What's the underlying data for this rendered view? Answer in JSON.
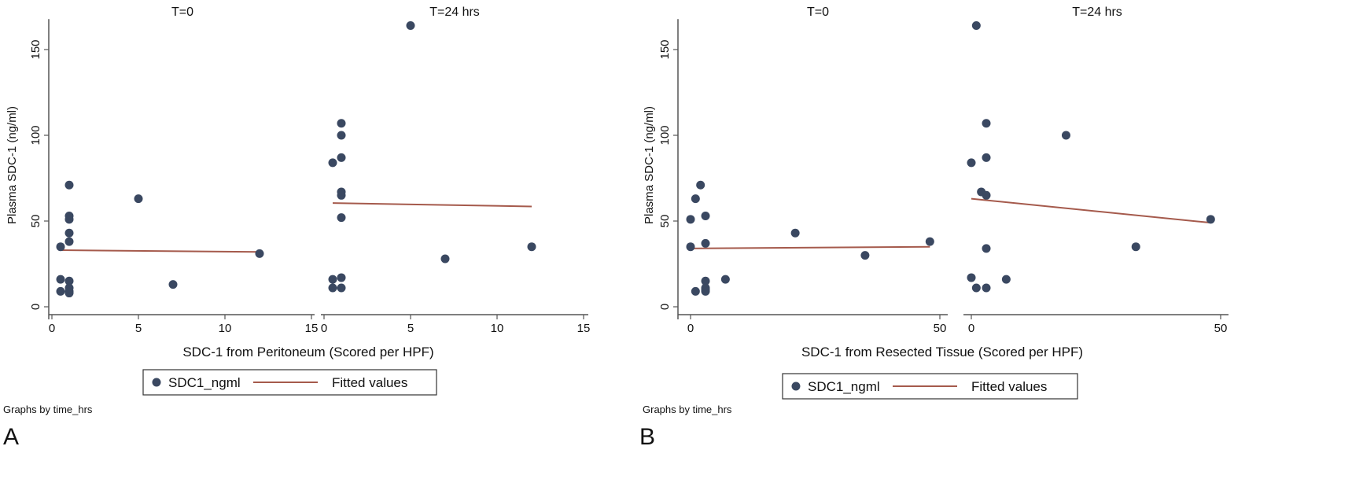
{
  "colors": {
    "marker": "#3a4861",
    "fit": "#a55a4c",
    "axis": "#555555"
  },
  "chart_data": [
    {
      "panel_label": "A",
      "type": "scatter",
      "ylabel": "Plasma SDC-1 (ng/ml)",
      "xlabel": "SDC-1 from Peritoneum (Scored per HPF)",
      "ylim": [
        0,
        165
      ],
      "yticks": [
        0,
        50,
        100,
        150
      ],
      "xlim": [
        0,
        15
      ],
      "xticks": [
        0,
        5,
        10,
        15
      ],
      "legend": [
        "SDC1_ngml",
        "Fitted values"
      ],
      "legend_position": "bottom",
      "note": "Graphs by time_hrs",
      "subplots": [
        {
          "title": "T=0",
          "points": [
            [
              0.5,
              35
            ],
            [
              0.5,
              16
            ],
            [
              0.5,
              9
            ],
            [
              1,
              71
            ],
            [
              1,
              53
            ],
            [
              1,
              51
            ],
            [
              1,
              43
            ],
            [
              1,
              38
            ],
            [
              1,
              15
            ],
            [
              1,
              11
            ],
            [
              1,
              9
            ],
            [
              1,
              8
            ],
            [
              5,
              63
            ],
            [
              7,
              13
            ],
            [
              12,
              31
            ]
          ],
          "fit": [
            [
              0.5,
              33
            ],
            [
              12,
              32
            ]
          ]
        },
        {
          "title": "T=24 hrs",
          "points": [
            [
              0.5,
              84
            ],
            [
              0.5,
              16
            ],
            [
              0.5,
              11
            ],
            [
              1,
              107
            ],
            [
              1,
              100
            ],
            [
              1,
              87
            ],
            [
              1,
              67
            ],
            [
              1,
              65
            ],
            [
              1,
              52
            ],
            [
              1,
              17
            ],
            [
              1,
              11
            ],
            [
              5,
              164
            ],
            [
              7,
              28
            ],
            [
              12,
              35
            ]
          ],
          "fit": [
            [
              0.5,
              60.5
            ],
            [
              12,
              58.5
            ]
          ]
        }
      ]
    },
    {
      "panel_label": "B",
      "type": "scatter",
      "ylabel": "Plasma SDC-1 (ng/ml)",
      "xlabel": "SDC-1 from Resected Tissue (Scored per HPF)",
      "ylim": [
        0,
        165
      ],
      "yticks": [
        0,
        50,
        100,
        150
      ],
      "xlim": [
        0,
        50
      ],
      "xticks": [
        0,
        50
      ],
      "legend": [
        "SDC1_ngml",
        "Fitted values"
      ],
      "legend_position": "bottom",
      "note": "Graphs by time_hrs",
      "subplots": [
        {
          "title": "T=0",
          "points": [
            [
              0,
              51
            ],
            [
              0,
              35
            ],
            [
              1,
              63
            ],
            [
              1,
              9
            ],
            [
              2,
              71
            ],
            [
              3,
              53
            ],
            [
              3,
              37
            ],
            [
              3,
              15
            ],
            [
              3,
              11
            ],
            [
              3,
              10
            ],
            [
              3,
              9
            ],
            [
              7,
              16
            ],
            [
              21,
              43
            ],
            [
              35,
              30
            ],
            [
              48,
              38
            ]
          ],
          "fit": [
            [
              0,
              34
            ],
            [
              48,
              35
            ]
          ]
        },
        {
          "title": "T=24 hrs",
          "points": [
            [
              0,
              84
            ],
            [
              0,
              17
            ],
            [
              1,
              164
            ],
            [
              1,
              11
            ],
            [
              2,
              67
            ],
            [
              3,
              107
            ],
            [
              3,
              87
            ],
            [
              3,
              65
            ],
            [
              3,
              34
            ],
            [
              3,
              11
            ],
            [
              7,
              16
            ],
            [
              19,
              100
            ],
            [
              33,
              35
            ],
            [
              48,
              51
            ]
          ],
          "fit": [
            [
              0,
              63
            ],
            [
              48,
              49
            ]
          ]
        }
      ]
    }
  ]
}
